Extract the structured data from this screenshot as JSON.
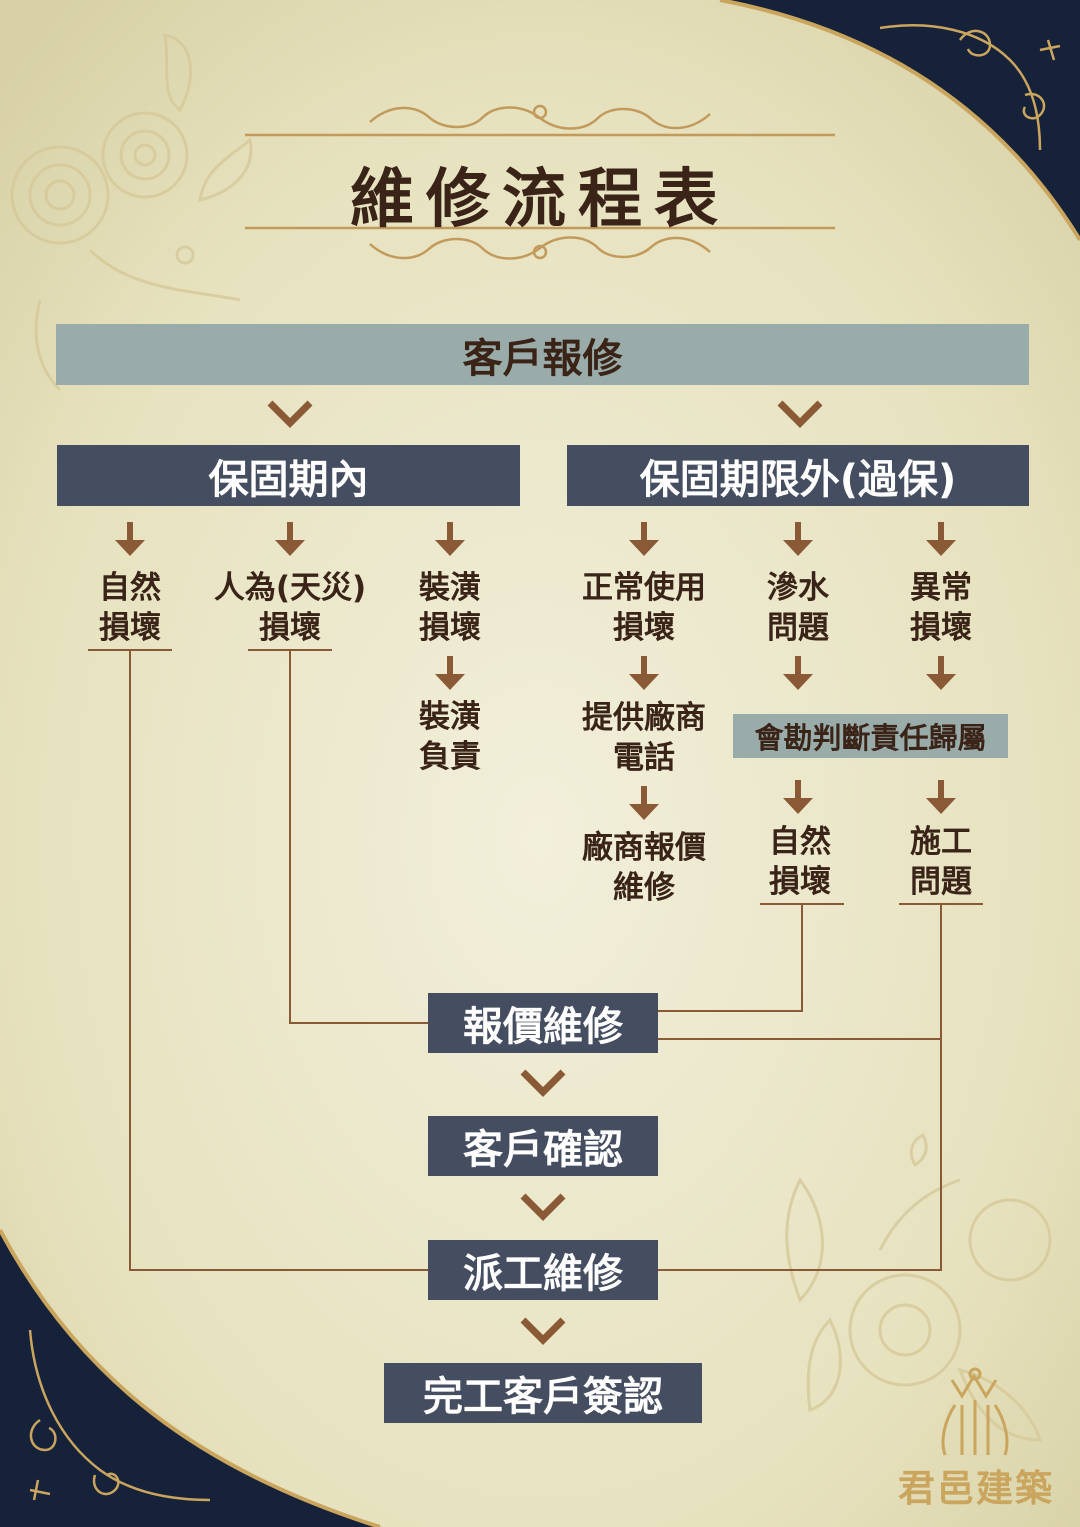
{
  "title": "維修流程表",
  "nodes": {
    "report": "客戶報修",
    "in_warranty": "保固期內",
    "out_warranty": "保固期限外(過保)",
    "in_warranty_causes": [
      [
        "自然",
        "損壞"
      ],
      [
        "人為(天災)",
        "損壞"
      ],
      [
        "裝潢",
        "損壞"
      ]
    ],
    "decoration_responsible": [
      "裝潢",
      "負責"
    ],
    "out_warranty_causes": [
      [
        "正常使用",
        "損壞"
      ],
      [
        "滲水",
        "問題"
      ],
      [
        "異常",
        "損壞"
      ]
    ],
    "vendor_phone": [
      "提供廠商",
      "電話"
    ],
    "vendor_quote": [
      "廠商報價",
      "維修"
    ],
    "survey": "會勘判斷責任歸屬",
    "survey_results": [
      [
        "自然",
        "損壞"
      ],
      [
        "施工",
        "問題"
      ]
    ],
    "quote_repair": "報價維修",
    "customer_confirm": "客戶確認",
    "dispatch": "派工維修",
    "signoff": "完工客戶簽認"
  },
  "logo": {
    "name": "君邑建築"
  },
  "colors": {
    "background": "#e7e3c3",
    "dark_box": "#454e60",
    "gray_box": "#9aacaa",
    "arrow": "#8a5a36",
    "line": "#8a5a36",
    "text": "#3a2418",
    "gold": "#c9a55e",
    "navy_corner": "#16223a"
  }
}
